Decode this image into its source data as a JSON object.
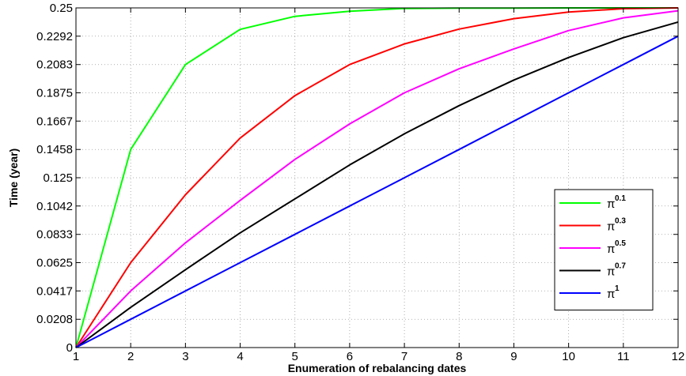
{
  "chart_data": {
    "type": "line",
    "title": "",
    "xlabel": "Enumeration of rebalancing dates",
    "ylabel": "Time (year)",
    "x": [
      1,
      2,
      3,
      4,
      5,
      6,
      7,
      8,
      9,
      10,
      11,
      12
    ],
    "xlim": [
      1,
      12
    ],
    "ylim": [
      0,
      0.25
    ],
    "x_ticks": [
      "1",
      "2",
      "3",
      "4",
      "5",
      "6",
      "7",
      "8",
      "9",
      "10",
      "11",
      "12"
    ],
    "y_ticks": [
      "0",
      "0.0208",
      "0.0417",
      "0.0625",
      "0.0833",
      "0.1042",
      "0.125",
      "0.1458",
      "0.1667",
      "0.1875",
      "0.2083",
      "0.2292",
      "0.25"
    ],
    "y_tick_values": [
      0,
      0.0208,
      0.0417,
      0.0625,
      0.0833,
      0.1042,
      0.125,
      0.1458,
      0.1667,
      0.1875,
      0.2083,
      0.2292,
      0.25
    ],
    "grid": true,
    "legend_position": "right",
    "series": [
      {
        "name_base": "π",
        "name_exp": "0.1",
        "color": "#00ff00",
        "values": [
          0,
          0.1458,
          0.2083,
          0.2342,
          0.2438,
          0.2475,
          0.2496,
          0.2498,
          0.2499,
          0.25,
          0.25,
          0.25
        ]
      },
      {
        "name_base": "π",
        "name_exp": "0.3",
        "color": "#ff0000",
        "values": [
          0,
          0.0625,
          0.1125,
          0.1542,
          0.1854,
          0.2083,
          0.2235,
          0.2344,
          0.2421,
          0.2469,
          0.2494,
          0.25
        ]
      },
      {
        "name_base": "π",
        "name_exp": "0.5",
        "color": "#ff00ff",
        "values": [
          0,
          0.0417,
          0.0771,
          0.1083,
          0.1385,
          0.1646,
          0.1875,
          0.2052,
          0.2198,
          0.2333,
          0.2427,
          0.2479
        ]
      },
      {
        "name_base": "π",
        "name_exp": "0.7",
        "color": "#000000",
        "values": [
          0,
          0.0296,
          0.0573,
          0.0844,
          0.1094,
          0.1344,
          0.1573,
          0.1781,
          0.1969,
          0.2135,
          0.2281,
          0.2396
        ]
      },
      {
        "name_base": "π",
        "name_exp": "1",
        "color": "#0000ff",
        "values": [
          0,
          0.0208,
          0.0417,
          0.0625,
          0.0833,
          0.1042,
          0.125,
          0.1458,
          0.1667,
          0.1875,
          0.2083,
          0.2292
        ]
      }
    ]
  }
}
